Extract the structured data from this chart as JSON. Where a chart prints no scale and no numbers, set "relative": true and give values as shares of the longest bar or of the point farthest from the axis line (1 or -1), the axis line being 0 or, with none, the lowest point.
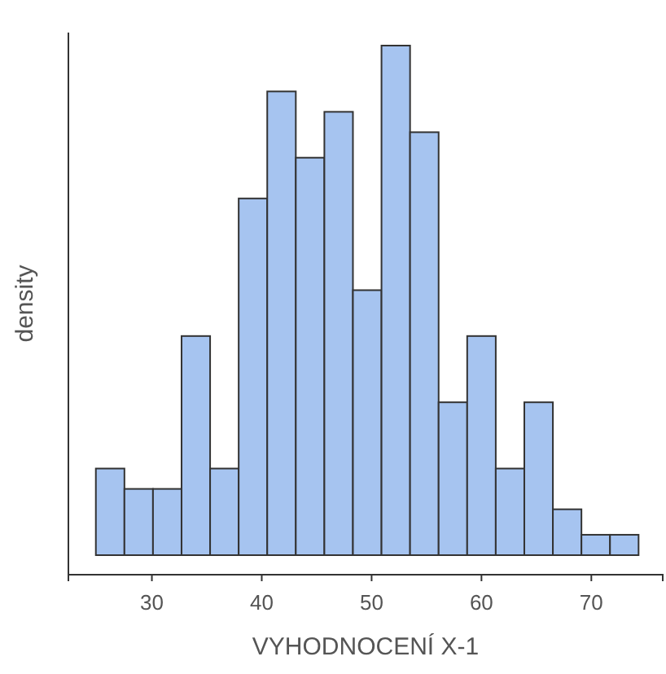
{
  "chart_data": {
    "type": "bar",
    "relative": true,
    "xlabel": "VYHODNOCENÍ X-1",
    "ylabel": "density",
    "x": [
      26.2,
      28.8,
      31.4,
      34,
      36.6,
      39.2,
      41.8,
      44.4,
      47,
      49.6,
      52.2,
      54.8,
      57.4,
      60,
      62.6,
      65.2,
      67.8,
      70.4,
      73
    ],
    "values": [
      0.17,
      0.13,
      0.13,
      0.43,
      0.17,
      0.7,
      0.91,
      0.78,
      0.87,
      0.52,
      1,
      0.83,
      0.3,
      0.43,
      0.17,
      0.3,
      0.09,
      0.04,
      0.04
    ],
    "color": "#a6c4f0",
    "xlim": [
      22.4,
      76.5
    ],
    "xticks": [
      30,
      40,
      50,
      60,
      70
    ]
  }
}
